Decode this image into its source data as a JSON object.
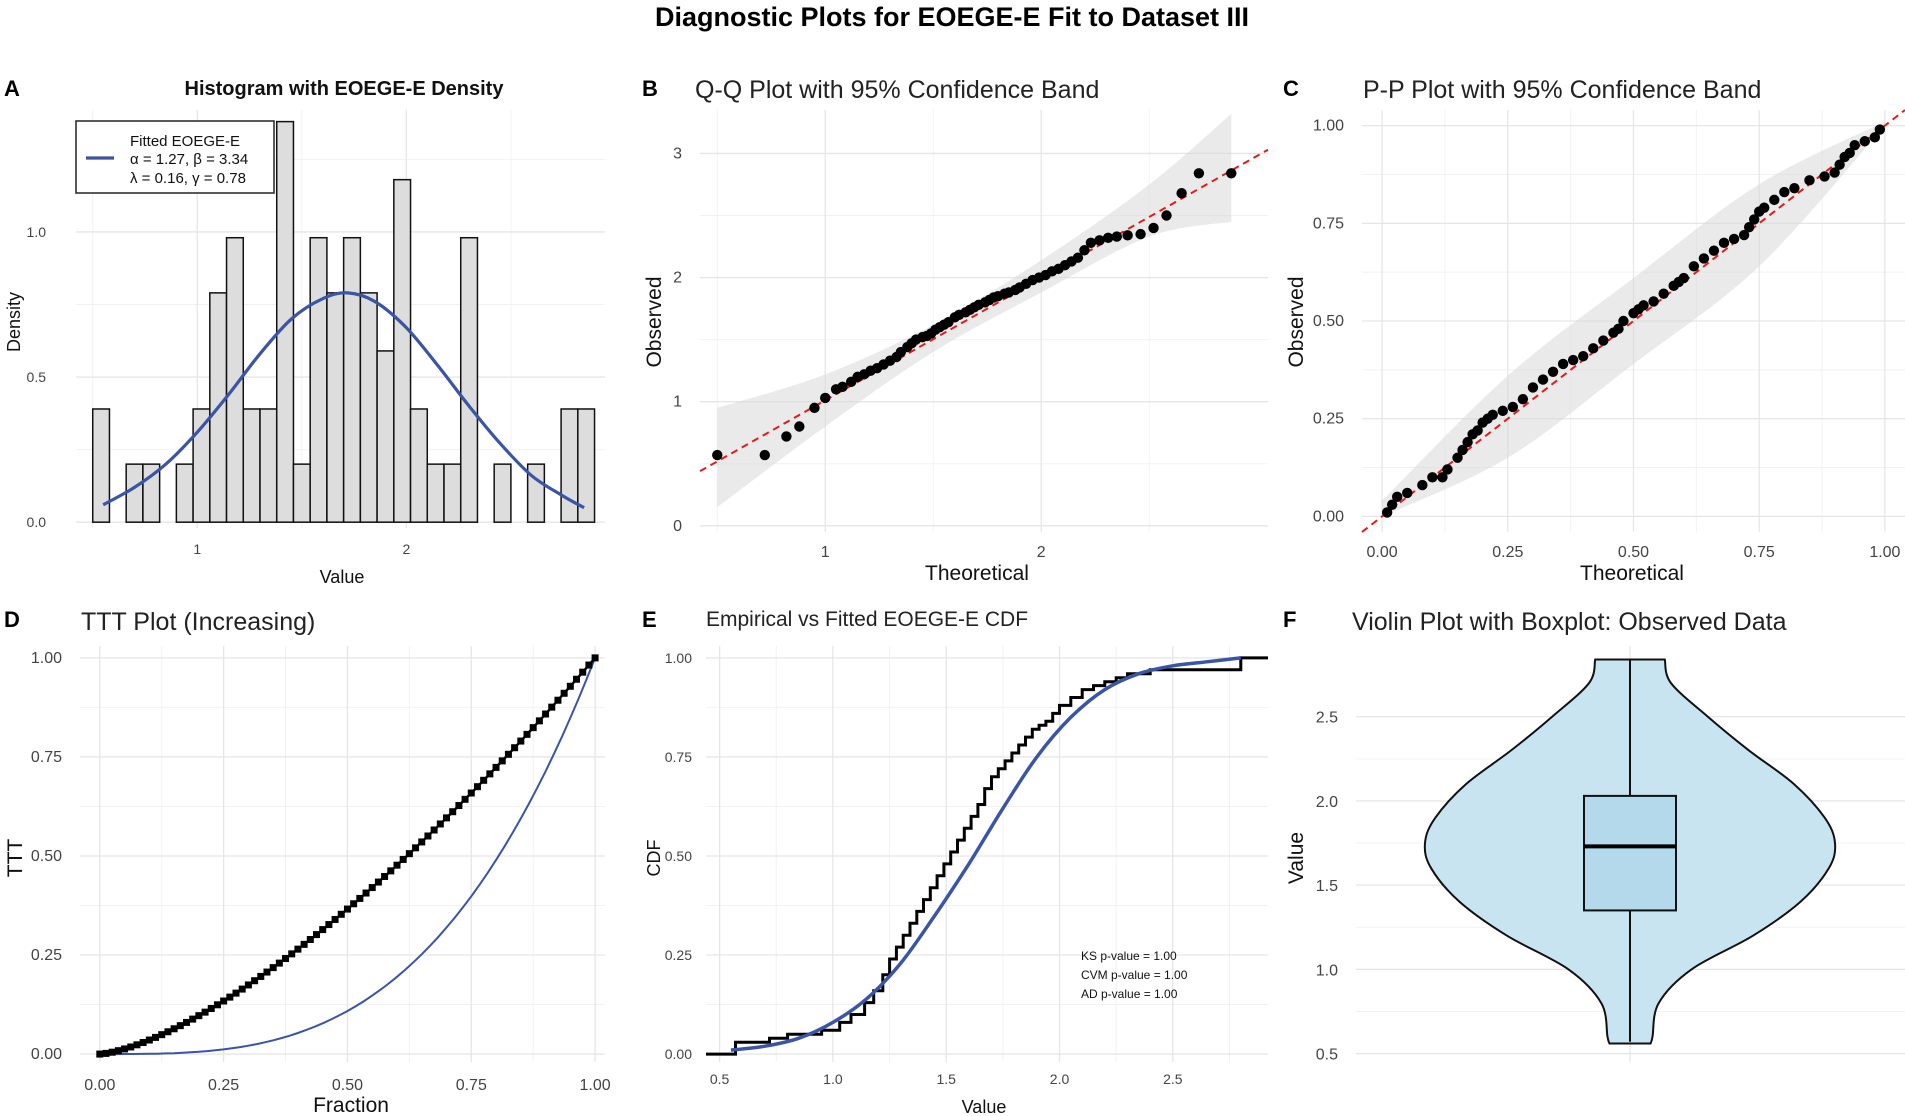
{
  "figure": {
    "title": "Diagnostic Plots for EOEGE-E Fit to Dataset III",
    "colors": {
      "fit": "#3b54a4",
      "ref": "#e41a1c",
      "bar": "#dddddd",
      "band": "#d9d9d9",
      "violin": "#c8e4f0",
      "box": "#b3d9ea"
    }
  },
  "chart_data": [
    {
      "panel": "A",
      "type": "bar",
      "title": "Histogram with EOEGE-E Density",
      "xlabel": "Value",
      "ylabel": "Density",
      "xlim": [
        0.42,
        2.95
      ],
      "ylim": [
        -0.02,
        1.42
      ],
      "xticks": [
        1,
        2
      ],
      "yticks": [
        0.0,
        0.5,
        1.0
      ],
      "xtick_labels": [
        "1",
        "2"
      ],
      "ytick_labels": [
        "0.0",
        "0.5",
        "1.0"
      ],
      "bin_start": 0.5,
      "bin_width": 0.08,
      "values": [
        0.39,
        0.0,
        0.2,
        0.2,
        0.0,
        0.2,
        0.39,
        0.79,
        0.98,
        0.39,
        0.39,
        1.38,
        0.2,
        0.98,
        0.79,
        0.98,
        0.79,
        0.59,
        1.18,
        0.39,
        0.2,
        0.2,
        0.98,
        0.0,
        0.2,
        0.0,
        0.2,
        0.0,
        0.39,
        0.39
      ],
      "legend": {
        "title": "Fitted EOEGE-E",
        "line1": "α = 1.27, β = 3.34",
        "line2": "λ = 0.16, γ = 0.78",
        "position": "top-left"
      },
      "density_curve": {
        "x": [
          0.55,
          0.7,
          0.85,
          1.0,
          1.15,
          1.3,
          1.45,
          1.6,
          1.72,
          1.85,
          2.0,
          2.15,
          2.3,
          2.45,
          2.6,
          2.75,
          2.85
        ],
        "y": [
          0.06,
          0.12,
          0.2,
          0.31,
          0.44,
          0.58,
          0.7,
          0.77,
          0.79,
          0.76,
          0.67,
          0.54,
          0.4,
          0.27,
          0.16,
          0.09,
          0.05
        ]
      }
    },
    {
      "panel": "B",
      "type": "scatter",
      "title": "Q-Q Plot with 95% Confidence Band",
      "xlabel": "Theoretical",
      "ylabel": "Observed",
      "xlim": [
        0.42,
        3.05
      ],
      "ylim": [
        -0.05,
        3.35
      ],
      "xticks": [
        1,
        2
      ],
      "yticks": [
        0,
        1,
        2,
        3
      ],
      "xtick_labels": [
        "1",
        "2"
      ],
      "ytick_labels": [
        "0",
        "1",
        "2",
        "3"
      ],
      "points_x": [
        0.5,
        0.72,
        0.82,
        0.88,
        0.95,
        1.0,
        1.05,
        1.08,
        1.12,
        1.15,
        1.18,
        1.21,
        1.24,
        1.27,
        1.3,
        1.33,
        1.35,
        1.38,
        1.4,
        1.42,
        1.45,
        1.47,
        1.49,
        1.51,
        1.53,
        1.55,
        1.57,
        1.6,
        1.62,
        1.65,
        1.67,
        1.69,
        1.71,
        1.74,
        1.76,
        1.78,
        1.8,
        1.83,
        1.85,
        1.88,
        1.9,
        1.93,
        1.96,
        1.99,
        2.02,
        2.05,
        2.08,
        2.11,
        2.14,
        2.17,
        2.2,
        2.23,
        2.27,
        2.31,
        2.35,
        2.4,
        2.46,
        2.52,
        2.58,
        2.65,
        2.73,
        2.88
      ],
      "points_y": [
        0.57,
        0.57,
        0.72,
        0.8,
        0.95,
        1.03,
        1.1,
        1.12,
        1.16,
        1.2,
        1.22,
        1.25,
        1.27,
        1.3,
        1.33,
        1.36,
        1.4,
        1.44,
        1.47,
        1.5,
        1.52,
        1.53,
        1.55,
        1.58,
        1.6,
        1.62,
        1.64,
        1.68,
        1.7,
        1.72,
        1.74,
        1.76,
        1.78,
        1.8,
        1.82,
        1.84,
        1.85,
        1.87,
        1.88,
        1.9,
        1.92,
        1.95,
        1.98,
        2.0,
        2.02,
        2.05,
        2.07,
        2.1,
        2.13,
        2.16,
        2.22,
        2.28,
        2.3,
        2.32,
        2.33,
        2.34,
        2.35,
        2.4,
        2.5,
        2.68,
        2.84,
        2.84
      ],
      "reference_line": {
        "x": [
          0.42,
          3.05
        ],
        "y": [
          0.44,
          3.03
        ]
      },
      "band": {
        "x": [
          0.5,
          1.0,
          1.5,
          2.0,
          2.5,
          2.88
        ],
        "lower": [
          0.15,
          0.8,
          1.4,
          1.88,
          2.33,
          2.45
        ],
        "upper": [
          0.95,
          1.22,
          1.62,
          2.14,
          2.75,
          3.32
        ]
      }
    },
    {
      "panel": "C",
      "type": "scatter",
      "title": "P-P Plot with 95% Confidence Band",
      "xlabel": "Theoretical",
      "ylabel": "Observed",
      "xlim": [
        -0.04,
        1.04
      ],
      "ylim": [
        -0.04,
        1.04
      ],
      "xticks": [
        0.0,
        0.25,
        0.5,
        0.75,
        1.0
      ],
      "yticks": [
        0.0,
        0.25,
        0.5,
        0.75,
        1.0
      ],
      "xtick_labels": [
        "0.00",
        "0.25",
        "0.50",
        "0.75",
        "1.00"
      ],
      "ytick_labels": [
        "0.00",
        "0.25",
        "0.50",
        "0.75",
        "1.00"
      ],
      "points_x": [
        0.01,
        0.02,
        0.03,
        0.05,
        0.08,
        0.1,
        0.12,
        0.13,
        0.15,
        0.16,
        0.17,
        0.18,
        0.19,
        0.2,
        0.21,
        0.22,
        0.24,
        0.26,
        0.28,
        0.3,
        0.32,
        0.34,
        0.36,
        0.38,
        0.4,
        0.42,
        0.44,
        0.46,
        0.47,
        0.48,
        0.5,
        0.51,
        0.52,
        0.54,
        0.56,
        0.58,
        0.59,
        0.6,
        0.62,
        0.64,
        0.66,
        0.68,
        0.7,
        0.72,
        0.73,
        0.74,
        0.75,
        0.76,
        0.78,
        0.8,
        0.82,
        0.85,
        0.88,
        0.9,
        0.91,
        0.92,
        0.93,
        0.94,
        0.96,
        0.98,
        0.99
      ],
      "points_y": [
        0.01,
        0.03,
        0.05,
        0.06,
        0.08,
        0.1,
        0.1,
        0.12,
        0.15,
        0.17,
        0.19,
        0.21,
        0.22,
        0.24,
        0.25,
        0.26,
        0.27,
        0.28,
        0.3,
        0.33,
        0.35,
        0.37,
        0.39,
        0.4,
        0.41,
        0.43,
        0.45,
        0.47,
        0.48,
        0.5,
        0.52,
        0.53,
        0.54,
        0.55,
        0.57,
        0.59,
        0.6,
        0.61,
        0.64,
        0.66,
        0.68,
        0.7,
        0.71,
        0.72,
        0.74,
        0.76,
        0.78,
        0.79,
        0.81,
        0.83,
        0.84,
        0.86,
        0.87,
        0.88,
        0.9,
        0.92,
        0.93,
        0.95,
        0.96,
        0.97,
        0.99
      ],
      "reference_line": {
        "x": [
          -0.04,
          1.04
        ],
        "y": [
          -0.04,
          1.04
        ]
      },
      "band": {
        "x": [
          0.0,
          0.25,
          0.5,
          0.75,
          1.0
        ],
        "lower": [
          0.0,
          0.15,
          0.39,
          0.64,
          1.0
        ],
        "upper": [
          0.04,
          0.36,
          0.61,
          0.85,
          1.01
        ]
      }
    },
    {
      "panel": "D",
      "type": "line",
      "title": "TTT Plot (Increasing)",
      "xlabel": "Fraction",
      "ylabel": "TTT",
      "xlim": [
        -0.04,
        1.02
      ],
      "ylim": [
        -0.02,
        1.03
      ],
      "xticks": [
        0.0,
        0.25,
        0.5,
        0.75,
        1.0
      ],
      "yticks": [
        0.0,
        0.25,
        0.5,
        0.75,
        1.0
      ],
      "xtick_labels": [
        "0.00",
        "0.25",
        "0.50",
        "0.75",
        "1.00"
      ],
      "ytick_labels": [
        "0.00",
        "0.25",
        "0.50",
        "0.75",
        "1.00"
      ],
      "n_points": 80,
      "empirical_exponent": 1.45,
      "fitted_exponent": 3.2
    },
    {
      "panel": "E",
      "type": "line",
      "title": "Empirical vs Fitted EOEGE-E CDF",
      "xlabel": "Value",
      "ylabel": "CDF",
      "xlim": [
        0.44,
        2.92
      ],
      "ylim": [
        -0.02,
        1.03
      ],
      "xticks": [
        0.5,
        1.0,
        1.5,
        2.0,
        2.5
      ],
      "yticks": [
        0.0,
        0.25,
        0.5,
        0.75,
        1.0
      ],
      "xtick_labels": [
        "0.5",
        "1.0",
        "1.5",
        "2.0",
        "2.5"
      ],
      "ytick_labels": [
        "0.00",
        "0.25",
        "0.50",
        "0.75",
        "1.00"
      ],
      "ecdf_x": [
        0.44,
        0.57,
        0.72,
        0.8,
        0.88,
        0.95,
        1.03,
        1.08,
        1.14,
        1.18,
        1.22,
        1.25,
        1.28,
        1.31,
        1.34,
        1.37,
        1.4,
        1.43,
        1.46,
        1.49,
        1.52,
        1.55,
        1.58,
        1.61,
        1.64,
        1.67,
        1.7,
        1.73,
        1.76,
        1.79,
        1.82,
        1.85,
        1.88,
        1.91,
        1.94,
        1.97,
        2.0,
        2.05,
        2.1,
        2.15,
        2.2,
        2.25,
        2.3,
        2.35,
        2.4,
        2.45,
        2.55,
        2.8,
        2.92
      ],
      "ecdf_y": [
        0.0,
        0.03,
        0.04,
        0.05,
        0.05,
        0.06,
        0.08,
        0.1,
        0.13,
        0.16,
        0.2,
        0.24,
        0.27,
        0.3,
        0.33,
        0.36,
        0.39,
        0.42,
        0.45,
        0.48,
        0.51,
        0.54,
        0.57,
        0.6,
        0.63,
        0.67,
        0.7,
        0.72,
        0.74,
        0.76,
        0.78,
        0.8,
        0.82,
        0.83,
        0.84,
        0.86,
        0.88,
        0.9,
        0.92,
        0.93,
        0.94,
        0.95,
        0.96,
        0.96,
        0.97,
        0.97,
        0.97,
        1.0,
        1.0
      ],
      "fitted_x": [
        0.55,
        0.7,
        0.85,
        1.0,
        1.15,
        1.3,
        1.45,
        1.6,
        1.75,
        1.9,
        2.05,
        2.2,
        2.35,
        2.5,
        2.65,
        2.8
      ],
      "fitted_y": [
        0.01,
        0.02,
        0.04,
        0.08,
        0.14,
        0.23,
        0.35,
        0.48,
        0.62,
        0.75,
        0.85,
        0.92,
        0.96,
        0.98,
        0.99,
        1.0
      ],
      "annotations": {
        "ks": "KS p-value = 1.00",
        "cvm": "CVM p-value = 1.00",
        "ad": "AD p-value = 1.00"
      }
    },
    {
      "panel": "F",
      "type": "violin",
      "title": "Violin Plot with Boxplot: Observed Data",
      "xlabel": "",
      "ylabel": "Value",
      "ylim": [
        0.45,
        2.92
      ],
      "yticks": [
        0.5,
        1.0,
        1.5,
        2.0,
        2.5
      ],
      "ytick_labels": [
        "0.5",
        "1.0",
        "1.5",
        "2.0",
        "2.5"
      ],
      "violin_y": [
        0.56,
        0.6,
        0.8,
        1.0,
        1.2,
        1.4,
        1.6,
        1.75,
        1.9,
        2.1,
        2.3,
        2.5,
        2.7,
        2.84
      ],
      "violin_halfwidth": [
        0.1,
        0.11,
        0.14,
        0.3,
        0.6,
        0.83,
        0.97,
        1.0,
        0.95,
        0.8,
        0.58,
        0.38,
        0.2,
        0.17
      ],
      "box": {
        "min": 0.57,
        "q1": 1.35,
        "median": 1.73,
        "q3": 2.03,
        "max": 2.84
      }
    }
  ]
}
